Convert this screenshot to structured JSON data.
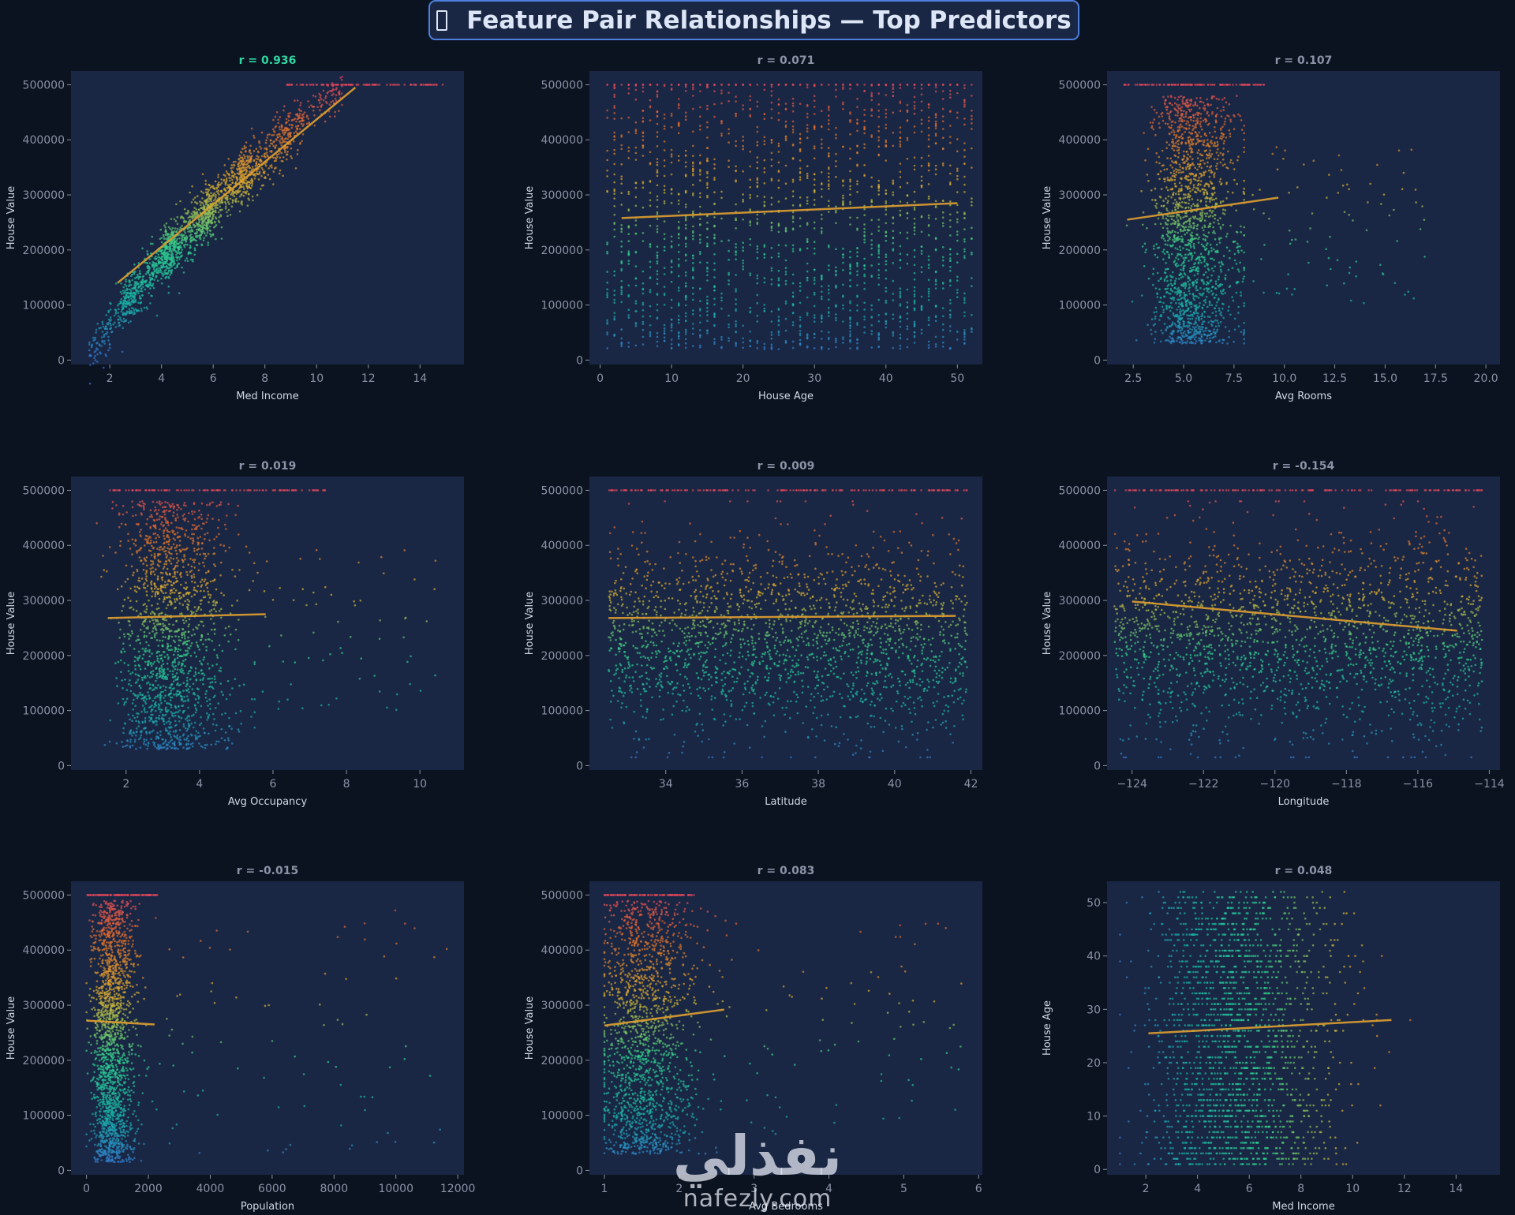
{
  "page_title": "Feature Pair Relationships — Top Predictors",
  "title_icon": "clipboard-icon",
  "watermark": {
    "arabic": "نفذلي",
    "latin": "nafezly.com"
  },
  "colors": {
    "background": "#0b1220",
    "panel": "#1a2744",
    "trend_line": "#e0a030",
    "highlight_r": "#2fd6a0",
    "muted_r": "#8a94a6",
    "axis_text": "#8a94a6",
    "label_text": "#d0d8e6",
    "colormap": [
      "#3a6fd8",
      "#18b2a8",
      "#2fd08e",
      "#d8b030",
      "#e0702a",
      "#e03a6a"
    ]
  },
  "chart_data": [
    {
      "type": "scatter",
      "title": "r = 0.936",
      "title_highlight": true,
      "xlabel": "Med Income",
      "ylabel": "House Value",
      "xlim": [
        0.5,
        15.7
      ],
      "ylim": [
        -8000,
        525000
      ],
      "xticks": [
        2,
        4,
        6,
        8,
        10,
        12,
        14
      ],
      "xtick_labels": [
        "2",
        "4",
        "6",
        "8",
        "10",
        "12",
        "14"
      ],
      "yticks": [
        0,
        100000,
        200000,
        300000,
        400000,
        500000
      ],
      "yticks_labels": [
        "0",
        "100000",
        "200000",
        "300000",
        "400000",
        "500000"
      ],
      "trend": [
        [
          2.3,
          140000
        ],
        [
          11.5,
          495000
        ]
      ],
      "clusters": [
        {
          "x": [
            1.2,
            3.0
          ],
          "y": [
            10000,
            130000
          ],
          "n": 170,
          "spread": 20000
        },
        {
          "x": [
            2.5,
            4.5
          ],
          "y": [
            100000,
            210000
          ],
          "n": 420,
          "spread": 22000
        },
        {
          "x": [
            4.0,
            6.0
          ],
          "y": [
            180000,
            280000
          ],
          "n": 520,
          "spread": 24000
        },
        {
          "x": [
            5.5,
            7.5
          ],
          "y": [
            250000,
            360000
          ],
          "n": 430,
          "spread": 24000
        },
        {
          "x": [
            7.0,
            9.5
          ],
          "y": [
            320000,
            440000
          ],
          "n": 320,
          "spread": 24000
        },
        {
          "x": [
            8.5,
            11.0
          ],
          "y": [
            400000,
            495000
          ],
          "n": 130,
          "spread": 16000
        },
        {
          "x": [
            8.8,
            15.0
          ],
          "y": [
            500000,
            500000
          ],
          "n": 110,
          "spread": 0
        }
      ]
    },
    {
      "type": "scatter",
      "title": "r = 0.071",
      "title_highlight": false,
      "xlabel": "House Age",
      "ylabel": "House Value",
      "xlim": [
        -1.5,
        53.5
      ],
      "ylim": [
        -8000,
        525000
      ],
      "xticks": [
        0,
        10,
        20,
        30,
        40,
        50
      ],
      "xtick_labels": [
        "0",
        "10",
        "20",
        "30",
        "40",
        "50"
      ],
      "yticks": [
        0,
        100000,
        200000,
        300000,
        400000,
        500000
      ],
      "yticks_labels": [
        "0",
        "100000",
        "200000",
        "300000",
        "400000",
        "500000"
      ],
      "trend": [
        [
          3,
          258000
        ],
        [
          50,
          285000
        ]
      ],
      "clusters": [
        {
          "x": [
            1,
            52
          ],
          "y": [
            20000,
            500000
          ],
          "n": 1900,
          "spread": 0,
          "discrete_x": true
        },
        {
          "x": [
            1,
            52
          ],
          "y": [
            500000,
            500000
          ],
          "n": 160,
          "spread": 0,
          "discrete_x": true
        }
      ]
    },
    {
      "type": "scatter",
      "title": "r = 0.107",
      "title_highlight": false,
      "xlabel": "Avg Rooms",
      "ylabel": "House Value",
      "xlim": [
        1.2,
        20.7
      ],
      "ylim": [
        -8000,
        525000
      ],
      "xticks": [
        2.5,
        5.0,
        7.5,
        10.0,
        12.5,
        15.0,
        17.5,
        20.0
      ],
      "xtick_labels": [
        "2.5",
        "5.0",
        "7.5",
        "10.0",
        "12.5",
        "15.0",
        "17.5",
        "20.0"
      ],
      "yticks": [
        0,
        100000,
        200000,
        300000,
        400000,
        500000
      ],
      "yticks_labels": [
        "0",
        "100000",
        "200000",
        "300000",
        "400000",
        "500000"
      ],
      "trend": [
        [
          2.2,
          255000
        ],
        [
          9.7,
          295000
        ]
      ],
      "clusters": [
        {
          "x": [
            2.0,
            8.0
          ],
          "y": [
            30000,
            480000
          ],
          "n": 1800,
          "spread": 0,
          "center_x": 5.0,
          "sx": 1.3
        },
        {
          "x": [
            7.5,
            17.0
          ],
          "y": [
            100000,
            400000
          ],
          "n": 90,
          "spread": 0
        },
        {
          "x": [
            2.0,
            9.0
          ],
          "y": [
            500000,
            500000
          ],
          "n": 120,
          "spread": 0
        }
      ]
    },
    {
      "type": "scatter",
      "title": "r = 0.019",
      "title_highlight": false,
      "xlabel": "Avg Occupancy",
      "ylabel": "House Value",
      "xlim": [
        0.5,
        11.2
      ],
      "ylim": [
        -8000,
        525000
      ],
      "xticks": [
        2,
        4,
        6,
        8,
        10
      ],
      "xtick_labels": [
        "2",
        "4",
        "6",
        "8",
        "10"
      ],
      "yticks": [
        0,
        100000,
        200000,
        300000,
        400000,
        500000
      ],
      "yticks_labels": [
        "0",
        "100000",
        "200000",
        "300000",
        "400000",
        "500000"
      ],
      "trend": [
        [
          1.5,
          268000
        ],
        [
          5.8,
          275000
        ]
      ],
      "clusters": [
        {
          "x": [
            1.2,
            5.5
          ],
          "y": [
            30000,
            480000
          ],
          "n": 1700,
          "spread": 0,
          "center_x": 2.9,
          "sx": 0.9
        },
        {
          "x": [
            5.0,
            10.5
          ],
          "y": [
            100000,
            400000
          ],
          "n": 70,
          "spread": 0
        },
        {
          "x": [
            1.5,
            7.5
          ],
          "y": [
            500000,
            500000
          ],
          "n": 110,
          "spread": 0
        }
      ]
    },
    {
      "type": "scatter",
      "title": "r = 0.009",
      "title_highlight": false,
      "xlabel": "Latitude",
      "ylabel": "House Value",
      "xlim": [
        32.0,
        42.3
      ],
      "ylim": [
        -8000,
        525000
      ],
      "xticks": [
        34,
        36,
        38,
        40,
        42
      ],
      "xtick_labels": [
        "34",
        "36",
        "38",
        "40",
        "42"
      ],
      "yticks": [
        0,
        100000,
        200000,
        300000,
        400000,
        500000
      ],
      "yticks_labels": [
        "0",
        "100000",
        "200000",
        "300000",
        "400000",
        "500000"
      ],
      "trend": [
        [
          32.5,
          268000
        ],
        [
          41.6,
          272000
        ]
      ],
      "clusters": [
        {
          "x": [
            32.5,
            41.9
          ],
          "y": [
            15000,
            480000
          ],
          "n": 2000,
          "spread": 0,
          "center_y": 230000,
          "sy": 90000
        },
        {
          "x": [
            32.5,
            41.9
          ],
          "y": [
            500000,
            500000
          ],
          "n": 160,
          "spread": 0
        }
      ]
    },
    {
      "type": "scatter",
      "title": "r = -0.154",
      "title_highlight": false,
      "xlabel": "Longitude",
      "ylabel": "House Value",
      "xlim": [
        -124.7,
        -113.7
      ],
      "ylim": [
        -8000,
        525000
      ],
      "xticks": [
        -124,
        -122,
        -120,
        -118,
        -116,
        -114
      ],
      "xtick_labels": [
        "−124",
        "−122",
        "−120",
        "−118",
        "−116",
        "−114"
      ],
      "yticks": [
        0,
        100000,
        200000,
        300000,
        400000,
        500000
      ],
      "yticks_labels": [
        "0",
        "100000",
        "200000",
        "300000",
        "400000",
        "500000"
      ],
      "trend": [
        [
          -124.0,
          298000
        ],
        [
          -114.9,
          245000
        ]
      ],
      "clusters": [
        {
          "x": [
            -124.5,
            -114.2
          ],
          "y": [
            15000,
            480000
          ],
          "n": 2000,
          "spread": 0,
          "center_y": 235000,
          "sy": 95000
        },
        {
          "x": [
            -124.5,
            -114.2
          ],
          "y": [
            500000,
            500000
          ],
          "n": 160,
          "spread": 0
        }
      ]
    },
    {
      "type": "scatter",
      "title": "r = -0.015",
      "title_highlight": false,
      "xlabel": "Population",
      "ylabel": "House Value",
      "xlim": [
        -500,
        12200
      ],
      "ylim": [
        -8000,
        525000
      ],
      "xticks": [
        0,
        2000,
        4000,
        6000,
        8000,
        10000,
        12000
      ],
      "xtick_labels": [
        "0",
        "2000",
        "4000",
        "6000",
        "8000",
        "10000",
        "12000"
      ],
      "yticks": [
        0,
        100000,
        200000,
        300000,
        400000,
        500000
      ],
      "yticks_labels": [
        "0",
        "100000",
        "200000",
        "300000",
        "400000",
        "500000"
      ],
      "trend": [
        [
          0,
          272000
        ],
        [
          2200,
          265000
        ]
      ],
      "clusters": [
        {
          "x": [
            0,
            3000
          ],
          "y": [
            15000,
            490000
          ],
          "n": 1900,
          "spread": 0,
          "center_x": 700,
          "sx": 420
        },
        {
          "x": [
            2500,
            11700
          ],
          "y": [
            30000,
            480000
          ],
          "n": 80,
          "spread": 0
        },
        {
          "x": [
            0,
            2300
          ],
          "y": [
            500000,
            500000
          ],
          "n": 120,
          "spread": 0
        }
      ]
    },
    {
      "type": "scatter",
      "title": "r = 0.083",
      "title_highlight": false,
      "xlabel": "Avg Bedrooms",
      "ylabel": "House Value",
      "xlim": [
        0.8,
        6.05
      ],
      "ylim": [
        -8000,
        525000
      ],
      "xticks": [
        1,
        2,
        3,
        4,
        5,
        6
      ],
      "xtick_labels": [
        "1",
        "2",
        "3",
        "4",
        "5",
        "6"
      ],
      "yticks": [
        0,
        100000,
        200000,
        300000,
        400000,
        500000
      ],
      "yticks_labels": [
        "0",
        "100000",
        "200000",
        "300000",
        "400000",
        "500000"
      ],
      "trend": [
        [
          1.0,
          263000
        ],
        [
          2.6,
          292000
        ]
      ],
      "clusters": [
        {
          "x": [
            1.0,
            3.0
          ],
          "y": [
            30000,
            490000
          ],
          "n": 1700,
          "spread": 0,
          "center_x": 1.4,
          "sx": 0.4
        },
        {
          "x": [
            2.5,
            5.8
          ],
          "y": [
            50000,
            450000
          ],
          "n": 80,
          "spread": 0
        },
        {
          "x": [
            1.0,
            2.2
          ],
          "y": [
            500000,
            500000
          ],
          "n": 120,
          "spread": 0
        }
      ]
    },
    {
      "type": "scatter",
      "title": "r = 0.048",
      "title_highlight": false,
      "xlabel": "Med Income",
      "ylabel": "House Age",
      "xlim": [
        0.5,
        15.7
      ],
      "ylim": [
        -1,
        54
      ],
      "xticks": [
        2,
        4,
        6,
        8,
        10,
        12,
        14
      ],
      "xtick_labels": [
        "2",
        "4",
        "6",
        "8",
        "10",
        "12",
        "14"
      ],
      "yticks": [
        0,
        10,
        20,
        30,
        40,
        50
      ],
      "yticks_labels": [
        "0",
        "10",
        "20",
        "30",
        "40",
        "50"
      ],
      "trend": [
        [
          2.1,
          25.5
        ],
        [
          11.5,
          28.0
        ]
      ],
      "color_by_x": true,
      "clusters": [
        {
          "x": [
            1.0,
            15.0
          ],
          "y": [
            1,
            52
          ],
          "n": 2100,
          "spread": 0,
          "center_x": 4.8,
          "sx": 2.2,
          "discrete_y": true
        }
      ]
    }
  ]
}
